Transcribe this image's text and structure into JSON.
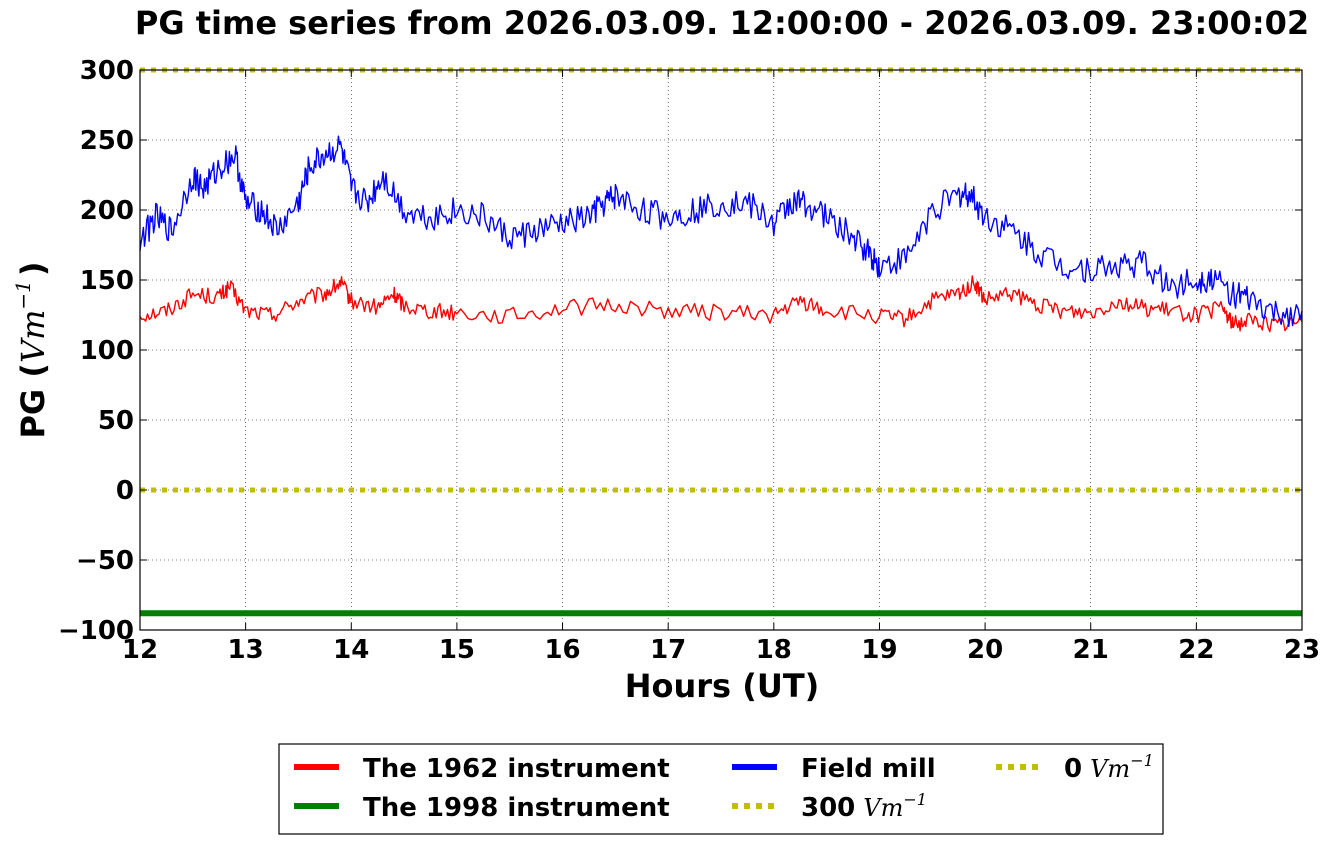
{
  "chart_data": {
    "type": "line",
    "title": "PG time series from 2026.03.09. 12:00:00 - 2026.03.09. 23:00:02",
    "xlabel": "Hours (UT)",
    "ylabel": {
      "prefix": "PG (",
      "unit_base": "Vm",
      "unit_exp": "−1",
      "suffix": ")"
    },
    "xlim": [
      12,
      23
    ],
    "ylim": [
      -100,
      300
    ],
    "xticks": [
      12,
      13,
      14,
      15,
      16,
      17,
      18,
      19,
      20,
      21,
      22,
      23
    ],
    "yticks": [
      300,
      250,
      200,
      150,
      100,
      50,
      0,
      -50,
      -100
    ],
    "ytick_labels": [
      "300",
      "250",
      "200",
      "150",
      "100",
      "50",
      "0",
      "−50",
      "−100"
    ],
    "grid": true,
    "legend_location": "below plot, centered",
    "series": [
      {
        "name": "The 1962 instrument",
        "color": "#ff0000",
        "style": "solid",
        "x": [
          12.0,
          12.25,
          12.5,
          12.75,
          12.85,
          13.0,
          13.25,
          13.5,
          13.75,
          13.9,
          14.0,
          14.25,
          14.4,
          14.5,
          14.75,
          15.0,
          15.5,
          16.0,
          16.5,
          17.0,
          17.5,
          18.0,
          18.25,
          18.5,
          19.0,
          19.25,
          19.5,
          19.75,
          19.9,
          20.0,
          20.25,
          20.5,
          20.75,
          21.0,
          21.25,
          21.5,
          21.75,
          22.0,
          22.25,
          22.35,
          22.5,
          22.75,
          23.0
        ],
        "y": [
          125,
          128,
          140,
          138,
          145,
          128,
          125,
          135,
          140,
          148,
          135,
          130,
          140,
          132,
          128,
          127,
          124,
          130,
          132,
          128,
          127,
          125,
          135,
          128,
          124,
          122,
          135,
          140,
          148,
          135,
          140,
          132,
          128,
          127,
          135,
          130,
          128,
          125,
          130,
          118,
          122,
          118,
          120
        ]
      },
      {
        "name": "The 1998 instrument",
        "color": "#008000",
        "style": "solid-thick",
        "x": [
          12.0,
          23.0
        ],
        "y": [
          -88,
          -88
        ]
      },
      {
        "name": "Field mill",
        "color": "#0000ff",
        "style": "solid",
        "x": [
          12.0,
          12.15,
          12.3,
          12.5,
          12.6,
          12.75,
          12.9,
          13.0,
          13.15,
          13.3,
          13.5,
          13.6,
          13.75,
          13.9,
          14.0,
          14.15,
          14.3,
          14.5,
          14.75,
          15.0,
          15.25,
          15.5,
          15.75,
          16.0,
          16.25,
          16.4,
          16.5,
          16.75,
          17.0,
          17.25,
          17.5,
          17.75,
          18.0,
          18.15,
          18.3,
          18.5,
          18.75,
          18.9,
          19.0,
          19.25,
          19.5,
          19.75,
          19.85,
          20.0,
          20.25,
          20.5,
          20.75,
          21.0,
          21.25,
          21.5,
          21.75,
          22.0,
          22.15,
          22.35,
          22.5,
          22.75,
          23.0
        ],
        "y": [
          178,
          195,
          185,
          225,
          215,
          230,
          240,
          205,
          200,
          185,
          205,
          230,
          240,
          245,
          215,
          205,
          225,
          200,
          195,
          200,
          195,
          180,
          185,
          190,
          195,
          205,
          210,
          200,
          195,
          200,
          205,
          205,
          190,
          205,
          205,
          195,
          180,
          170,
          160,
          165,
          200,
          210,
          212,
          195,
          185,
          170,
          160,
          158,
          160,
          162,
          145,
          150,
          152,
          140,
          135,
          125,
          128
        ]
      }
    ],
    "reference_lines": [
      {
        "label": "300",
        "unit_base": "Vm",
        "unit_exp": "−1",
        "y": 300,
        "color": "#bfbf00",
        "style": "dotted"
      },
      {
        "label": "0",
        "unit_base": "Vm",
        "unit_exp": "−1",
        "y": 0,
        "color": "#bfbf00",
        "style": "dotted"
      }
    ]
  }
}
